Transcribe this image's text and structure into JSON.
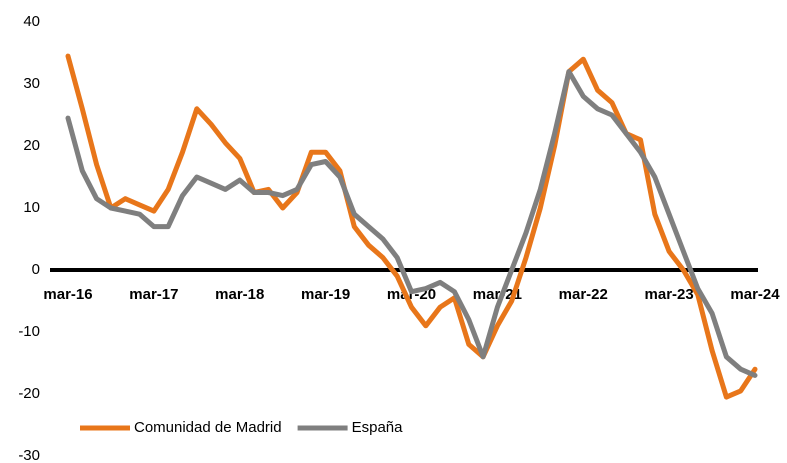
{
  "chart_data": {
    "type": "line",
    "categories": [
      "mar-16",
      null,
      null,
      null,
      null,
      null,
      "mar-17",
      null,
      null,
      null,
      null,
      null,
      "mar-18",
      null,
      null,
      null,
      null,
      null,
      "mar-19",
      null,
      null,
      null,
      null,
      null,
      "mar-20",
      null,
      null,
      null,
      null,
      null,
      "mar-21",
      null,
      null,
      null,
      null,
      null,
      "mar-22",
      null,
      null,
      null,
      null,
      null,
      "mar-23",
      null,
      null,
      null,
      null,
      null,
      "mar-24"
    ],
    "series": [
      {
        "name": "Comunidad de Madrid",
        "color": "#e8761a",
        "values": [
          34.5,
          26,
          17,
          10,
          11.5,
          10.5,
          9.5,
          13,
          19,
          26,
          23.5,
          20.5,
          18,
          12.5,
          13,
          10,
          12.5,
          19,
          19,
          16,
          7,
          4,
          2,
          -1,
          -6,
          -9,
          -6,
          -4.5,
          -12,
          -14,
          -9,
          -5,
          2,
          10,
          20,
          32,
          34,
          29,
          27,
          22,
          21,
          9,
          3,
          0,
          -4,
          -13,
          -20.5,
          -19.5,
          -16
        ]
      },
      {
        "name": "España",
        "color": "#7f7f7f",
        "values": [
          24.5,
          16,
          11.5,
          10,
          9.5,
          9,
          7,
          7,
          12,
          15,
          14,
          13,
          14.5,
          12.5,
          12.5,
          12,
          13,
          17,
          17.5,
          15,
          9,
          7,
          5,
          2,
          -3.5,
          -3,
          -2,
          -3.5,
          -8,
          -14,
          -6,
          0,
          6,
          13,
          22,
          32,
          28,
          26,
          25,
          22,
          19,
          15,
          9,
          3,
          -3,
          -7,
          -14,
          -16,
          -17
        ]
      }
    ],
    "ylim": [
      -30,
      40
    ],
    "yticks": [
      -30,
      -20,
      -10,
      0,
      10,
      20,
      30,
      40
    ],
    "grid": false,
    "legend": "lower left"
  }
}
